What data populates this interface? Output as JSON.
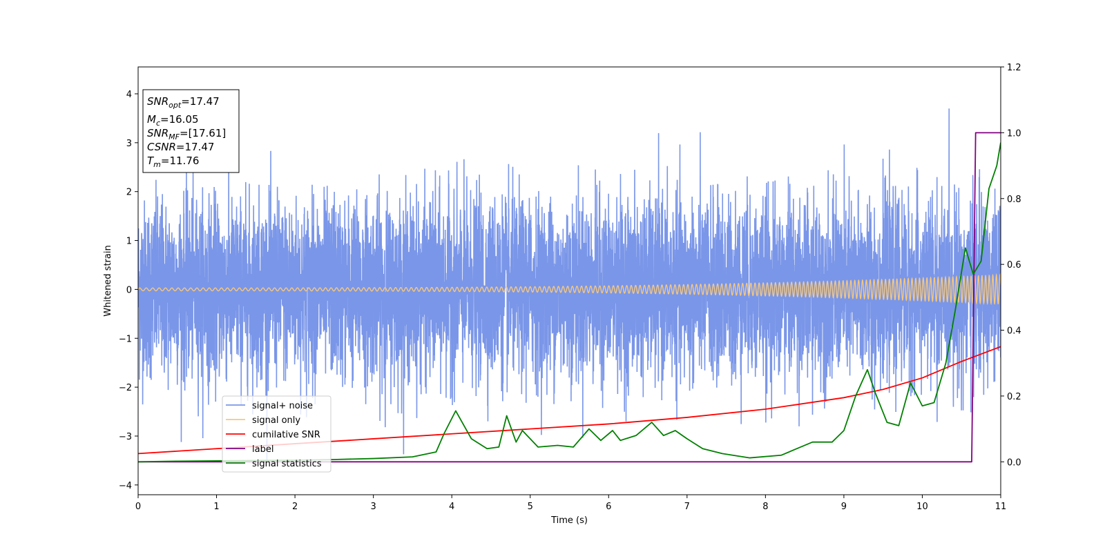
{
  "chart_data": {
    "type": "line",
    "xlabel": "Time (s)",
    "ylabel": "Whitened strain",
    "xlim": [
      0,
      11
    ],
    "ylim_left": [
      -4.2,
      4.55
    ],
    "ylim_right": [
      -0.1,
      1.2
    ],
    "x_ticks": [
      0,
      1,
      2,
      3,
      4,
      5,
      6,
      7,
      8,
      9,
      10,
      11
    ],
    "y_ticks_left": [
      {
        "value": 4,
        "label": "4"
      },
      {
        "value": 3,
        "label": "3"
      },
      {
        "value": 2,
        "label": "2"
      },
      {
        "value": 1,
        "label": "1"
      },
      {
        "value": 0,
        "label": "0"
      },
      {
        "value": -1,
        "label": "−1"
      },
      {
        "value": -2,
        "label": "−2"
      },
      {
        "value": -3,
        "label": "−3"
      },
      {
        "value": -4,
        "label": "−4"
      }
    ],
    "y_ticks_right": [
      {
        "value": 1.2,
        "label": "1.2"
      },
      {
        "value": 1.0,
        "label": "1.0"
      },
      {
        "value": 0.8,
        "label": "0.8"
      },
      {
        "value": 0.6,
        "label": "0.6"
      },
      {
        "value": 0.4,
        "label": "0.4"
      },
      {
        "value": 0.2,
        "label": "0.2"
      },
      {
        "value": 0.0,
        "label": "0.0"
      }
    ],
    "legend_position": "lower-left",
    "info_box": {
      "position": "upper-left",
      "lines": [
        {
          "main": "SNR",
          "sub": "opt",
          "value": "=17.47"
        },
        {
          "main": "M",
          "sub": "c",
          "value": "=16.05"
        },
        {
          "main": "SNR",
          "sub": "MF",
          "value": "=[17.61]"
        },
        {
          "main": "CSNR",
          "sub": "",
          "value": "=17.47"
        },
        {
          "main": "T",
          "sub": "m",
          "value": "=11.76"
        }
      ]
    },
    "series": [
      {
        "name": "signal+ noise",
        "color": "#7a96e8",
        "axis": "left",
        "description_kind": "noise",
        "typical_amplitude": 1.15,
        "peak_max": 3.7,
        "peak_min": -3.5
      },
      {
        "name": "signal only",
        "color": "#f5c77e",
        "axis": "left",
        "description_kind": "chirp",
        "amplitude_start": 0.03,
        "amplitude_end": 0.3
      },
      {
        "name": "cumilative SNR",
        "color": "#ff0000",
        "axis": "right",
        "x": [
          0,
          1,
          2,
          3,
          4,
          5,
          6,
          7,
          8,
          9,
          9.5,
          10,
          10.5,
          11
        ],
        "y": [
          0.025,
          0.04,
          0.055,
          0.07,
          0.085,
          0.1,
          0.115,
          0.135,
          0.16,
          0.195,
          0.22,
          0.255,
          0.305,
          0.35
        ]
      },
      {
        "name": "label",
        "color": "#800080",
        "axis": "right",
        "x": [
          0,
          10.63,
          10.68,
          11
        ],
        "y": [
          0.0,
          0.0,
          1.0,
          1.0
        ]
      },
      {
        "name": "signal statistics",
        "color": "#008000",
        "axis": "right",
        "x": [
          0,
          0.5,
          1,
          1.5,
          2,
          2.5,
          3,
          3.5,
          3.8,
          3.9,
          4.05,
          4.25,
          4.45,
          4.6,
          4.7,
          4.82,
          4.9,
          5.1,
          5.35,
          5.55,
          5.75,
          5.9,
          6.05,
          6.15,
          6.35,
          6.55,
          6.7,
          6.85,
          7.0,
          7.2,
          7.45,
          7.8,
          8.2,
          8.4,
          8.6,
          8.85,
          9.0,
          9.15,
          9.3,
          9.4,
          9.55,
          9.7,
          9.85,
          10.0,
          10.15,
          10.3,
          10.42,
          10.55,
          10.65,
          10.75,
          10.85,
          10.95,
          11.0
        ],
        "y": [
          0.0,
          0.002,
          0.003,
          0.004,
          0.005,
          0.007,
          0.01,
          0.015,
          0.03,
          0.085,
          0.155,
          0.07,
          0.04,
          0.045,
          0.14,
          0.06,
          0.095,
          0.045,
          0.05,
          0.045,
          0.1,
          0.065,
          0.095,
          0.065,
          0.08,
          0.12,
          0.08,
          0.095,
          0.07,
          0.04,
          0.025,
          0.012,
          0.02,
          0.04,
          0.06,
          0.06,
          0.095,
          0.2,
          0.28,
          0.21,
          0.12,
          0.11,
          0.24,
          0.17,
          0.18,
          0.3,
          0.46,
          0.65,
          0.57,
          0.61,
          0.83,
          0.9,
          0.97
        ]
      }
    ]
  }
}
